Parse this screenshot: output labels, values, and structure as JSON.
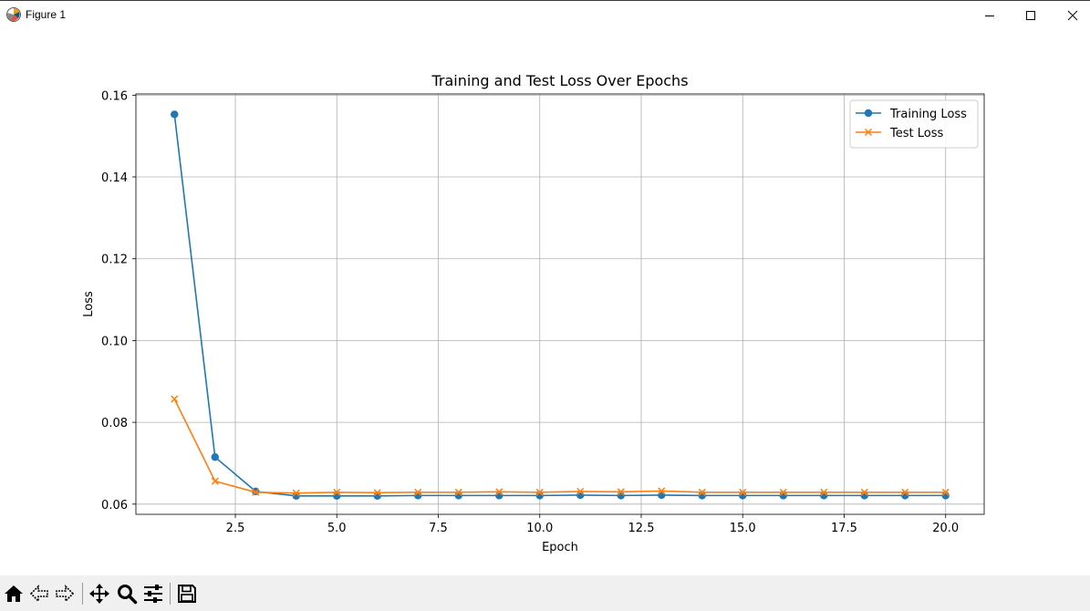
{
  "window": {
    "title": "Figure 1"
  },
  "toolbar": {
    "buttons": [
      {
        "name": "home-icon"
      },
      {
        "name": "back-icon"
      },
      {
        "name": "forward-icon"
      },
      {
        "name": "pan-icon"
      },
      {
        "name": "zoom-icon"
      },
      {
        "name": "configure-subplots-icon"
      },
      {
        "name": "save-icon"
      }
    ]
  },
  "chart_data": {
    "type": "line",
    "title": "Training and Test Loss Over Epochs",
    "xlabel": "Epoch",
    "ylabel": "Loss",
    "xlim": [
      0.05,
      20.95
    ],
    "ylim": [
      0.0575,
      0.1603
    ],
    "xticks": [
      2.5,
      5.0,
      7.5,
      10.0,
      12.5,
      15.0,
      17.5,
      20.0
    ],
    "xtick_labels": [
      "2.5",
      "5.0",
      "7.5",
      "10.0",
      "12.5",
      "15.0",
      "17.5",
      "20.0"
    ],
    "yticks": [
      0.06,
      0.08,
      0.1,
      0.12,
      0.14,
      0.16
    ],
    "ytick_labels": [
      "0.06",
      "0.08",
      "0.10",
      "0.12",
      "0.14",
      "0.16"
    ],
    "grid": true,
    "legend": "top-right",
    "x": [
      1,
      2,
      3,
      4,
      5,
      6,
      7,
      8,
      9,
      10,
      11,
      12,
      13,
      14,
      15,
      16,
      17,
      18,
      19,
      20
    ],
    "series": [
      {
        "name": "Training Loss",
        "color": "#1f77b4",
        "marker": "circle",
        "values": [
          0.1553,
          0.0715,
          0.0631,
          0.062,
          0.062,
          0.062,
          0.0621,
          0.0621,
          0.0621,
          0.0621,
          0.0622,
          0.0621,
          0.0622,
          0.0621,
          0.0621,
          0.0621,
          0.0621,
          0.0621,
          0.0621,
          0.0621
        ]
      },
      {
        "name": "Test Loss",
        "color": "#ff7f0e",
        "marker": "x",
        "values": [
          0.0857,
          0.0656,
          0.0629,
          0.0627,
          0.0629,
          0.0628,
          0.0629,
          0.0629,
          0.063,
          0.0629,
          0.0631,
          0.063,
          0.0632,
          0.0629,
          0.0629,
          0.0629,
          0.0629,
          0.0629,
          0.0629,
          0.0629
        ]
      }
    ]
  }
}
